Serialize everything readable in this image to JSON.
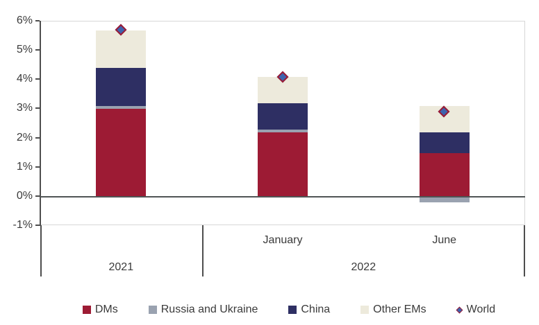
{
  "colors": {
    "dms": "#9d1b34",
    "russia_ukraine": "#9aa2b0",
    "china": "#2e2f63",
    "other_ems": "#edeadc",
    "world_fill": "#3e63ae",
    "world_border": "#9d1b34",
    "axis_dark": "#4d4d4d",
    "zero_line": "#4f5455",
    "gridline_light": "#d7d7d7",
    "text": "#3a3a3a"
  },
  "chart_data": {
    "type": "bar",
    "stacked": true,
    "title": "",
    "xlabel": "",
    "ylabel": "",
    "unit": "%",
    "ylim": [
      -1,
      6
    ],
    "ytick_labels": [
      "6%",
      "5%",
      "4%",
      "3%",
      "2%",
      "1%",
      "0%",
      "-1%"
    ],
    "grid": {
      "top_line_at": 6,
      "zero_line_at": 0,
      "bottom_line_at": -1,
      "inner_gridlines": false
    },
    "categories": [
      "2021",
      "January 2022",
      "June 2022"
    ],
    "series": [
      {
        "name": "DMs",
        "color": "#9d1b34",
        "values": [
          3.0,
          2.2,
          1.5
        ]
      },
      {
        "name": "Russia and Ukraine",
        "color": "#9aa2b0",
        "values": [
          0.1,
          0.1,
          -0.2
        ]
      },
      {
        "name": "China",
        "color": "#2e2f63",
        "values": [
          1.3,
          0.9,
          0.7
        ]
      },
      {
        "name": "Other EMs",
        "color": "#edeadc",
        "values": [
          1.3,
          0.9,
          0.9
        ]
      }
    ],
    "marker_series": {
      "name": "World",
      "marker": "diamond",
      "fill": "#3e63ae",
      "border": "#9d1b34",
      "values": [
        5.7,
        4.1,
        2.9
      ]
    },
    "x_axis": {
      "month_labels": [
        "",
        "January",
        "June"
      ],
      "year_groups": [
        {
          "label": "2021",
          "from": 0,
          "to": 0
        },
        {
          "label": "2022",
          "from": 1,
          "to": 2
        }
      ]
    },
    "legend_position": "bottom",
    "legend": [
      {
        "label": "DMs",
        "swatch": "square",
        "color": "#9d1b34"
      },
      {
        "label": "Russia and Ukraine",
        "swatch": "square",
        "color": "#9aa2b0"
      },
      {
        "label": "China",
        "swatch": "square",
        "color": "#2e2f63"
      },
      {
        "label": "Other EMs",
        "swatch": "square",
        "color": "#edeadc"
      },
      {
        "label": "World",
        "swatch": "diamond",
        "color": "#3e63ae"
      }
    ]
  }
}
